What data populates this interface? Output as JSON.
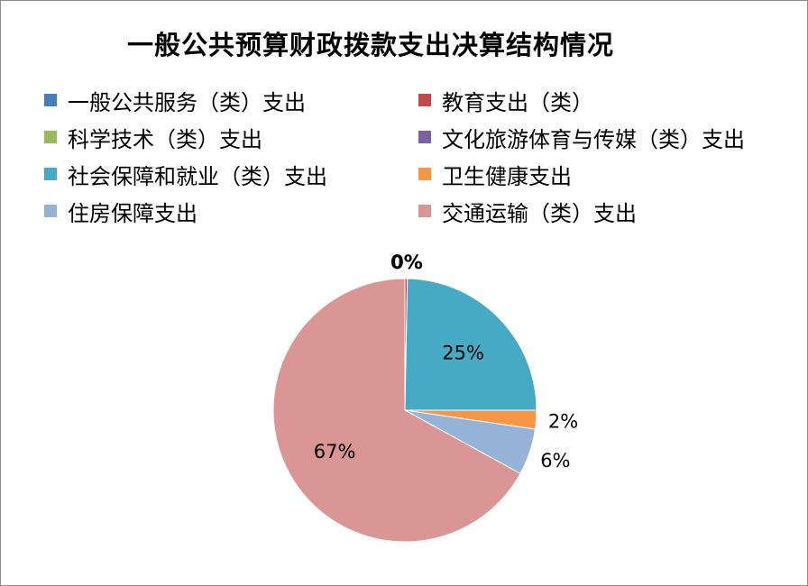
{
  "chart_data": {
    "type": "pie",
    "title": "一般公共预算财政拨款支出决算结构情况",
    "legend_position": "top",
    "categories": [
      "一般公共服务（类）支出",
      "教育支出（类）",
      "科学技术（类）支出",
      "文化旅游体育与传媒（类）支出",
      "社会保障和就业（类）支出",
      "卫生健康支出",
      "住房保障支出",
      "交通运输（类）支出"
    ],
    "values": [
      0.0,
      0.3,
      0.0,
      0.0,
      24.7,
      2.3,
      5.7,
      67.0
    ],
    "data_labels": [
      "0%",
      "0%",
      "",
      "",
      "25%",
      "2%",
      "6%",
      "67%"
    ],
    "colors": [
      "#4a7ebb",
      "#be4b48",
      "#98b954",
      "#7d60a0",
      "#46aac5",
      "#f79646",
      "#95b3d7",
      "#d99694"
    ]
  }
}
